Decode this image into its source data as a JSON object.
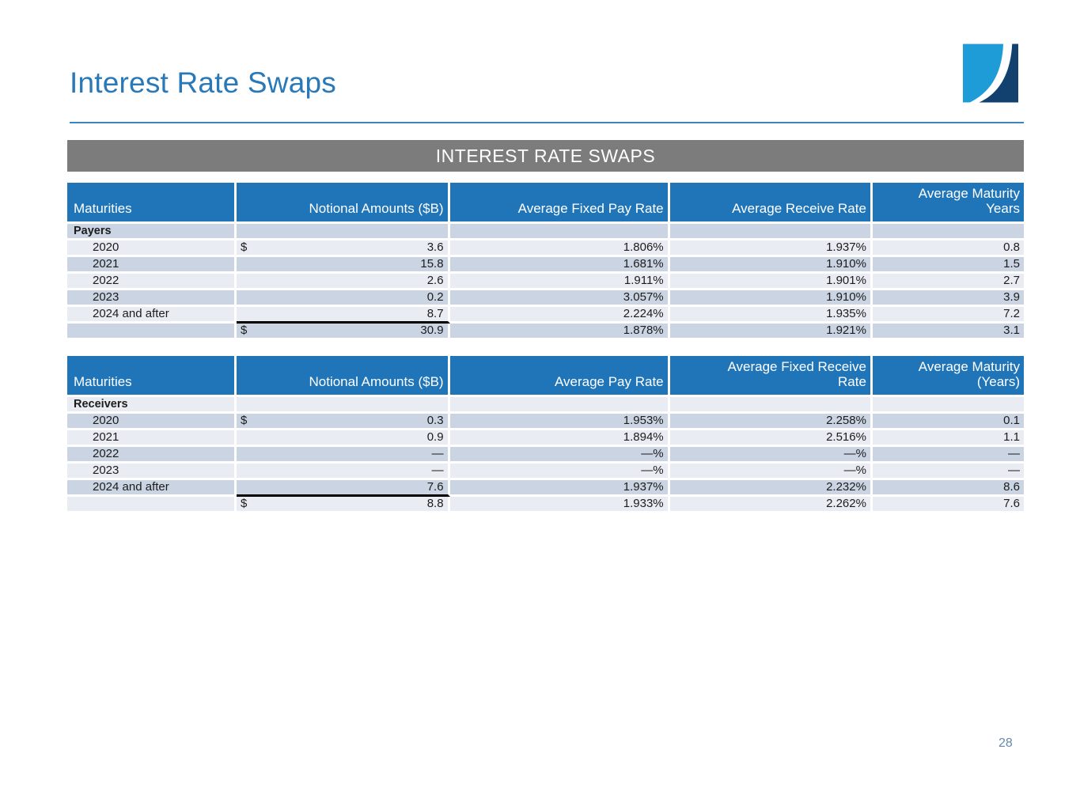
{
  "slide": {
    "title": "Interest Rate Swaps",
    "band_title": "INTEREST RATE SWAPS",
    "page_number": "28"
  },
  "colors": {
    "title_blue": "#2979B8",
    "header_blue": "#1F75B8",
    "band_gray": "#7C7C7C",
    "row_light": "#E9ECF2",
    "row_dark": "#CAD4E3",
    "rule_blue": "#3A86C0",
    "logo_light_blue": "#1E9CD7",
    "logo_navy": "#12406F",
    "page_number_blue": "#6688AE"
  },
  "tables": [
    {
      "name": "payers",
      "group_label": "Payers",
      "group_shade": "dark",
      "headers": [
        "Maturities",
        "Notional Amounts ($B)",
        "Average Fixed Pay Rate",
        "Average Receive Rate",
        "Average Maturity\nYears"
      ],
      "rows": [
        {
          "maturity": "2020",
          "dollar": "$",
          "notional": "3.6",
          "rate_a": "1.806%",
          "rate_b": "1.937%",
          "avg_maturity": "0.8",
          "shade": "light"
        },
        {
          "maturity": "2021",
          "dollar": "",
          "notional": "15.8",
          "rate_a": "1.681%",
          "rate_b": "1.910%",
          "avg_maturity": "1.5",
          "shade": "dark"
        },
        {
          "maturity": "2022",
          "dollar": "",
          "notional": "2.6",
          "rate_a": "1.911%",
          "rate_b": "1.901%",
          "avg_maturity": "2.7",
          "shade": "light"
        },
        {
          "maturity": "2023",
          "dollar": "",
          "notional": "0.2",
          "rate_a": "3.057%",
          "rate_b": "1.910%",
          "avg_maturity": "3.9",
          "shade": "dark"
        },
        {
          "maturity": "2024 and after",
          "dollar": "",
          "notional": "8.7",
          "rate_a": "2.224%",
          "rate_b": "1.935%",
          "avg_maturity": "7.2",
          "shade": "light",
          "notional_underline": true
        },
        {
          "maturity": "",
          "dollar": "$",
          "notional": "30.9",
          "rate_a": "1.878%",
          "rate_b": "1.921%",
          "avg_maturity": "3.1",
          "shade": "dark",
          "is_total": true
        }
      ]
    },
    {
      "name": "receivers",
      "group_label": "Receivers",
      "group_shade": "light",
      "headers": [
        "Maturities",
        "Notional Amounts ($B)",
        "Average Pay Rate",
        "Average Fixed Receive\nRate",
        "Average Maturity\n(Years)"
      ],
      "rows": [
        {
          "maturity": "2020",
          "dollar": "$",
          "notional": "0.3",
          "rate_a": "1.953%",
          "rate_b": "2.258%",
          "avg_maturity": "0.1",
          "shade": "dark"
        },
        {
          "maturity": "2021",
          "dollar": "",
          "notional": "0.9",
          "rate_a": "1.894%",
          "rate_b": "2.516%",
          "avg_maturity": "1.1",
          "shade": "light"
        },
        {
          "maturity": "2022",
          "dollar": "",
          "notional": "—",
          "rate_a": "—%",
          "rate_b": "—%",
          "avg_maturity": "—",
          "shade": "dark"
        },
        {
          "maturity": "2023",
          "dollar": "",
          "notional": "—",
          "rate_a": "—%",
          "rate_b": "—%",
          "avg_maturity": "—",
          "shade": "light"
        },
        {
          "maturity": "2024 and after",
          "dollar": "",
          "notional": "7.6",
          "rate_a": "1.937%",
          "rate_b": "2.232%",
          "avg_maturity": "8.6",
          "shade": "dark",
          "notional_underline": true
        },
        {
          "maturity": "",
          "dollar": "$",
          "notional": "8.8",
          "rate_a": "1.933%",
          "rate_b": "2.262%",
          "avg_maturity": "7.6",
          "shade": "light",
          "is_total": true
        }
      ]
    }
  ]
}
